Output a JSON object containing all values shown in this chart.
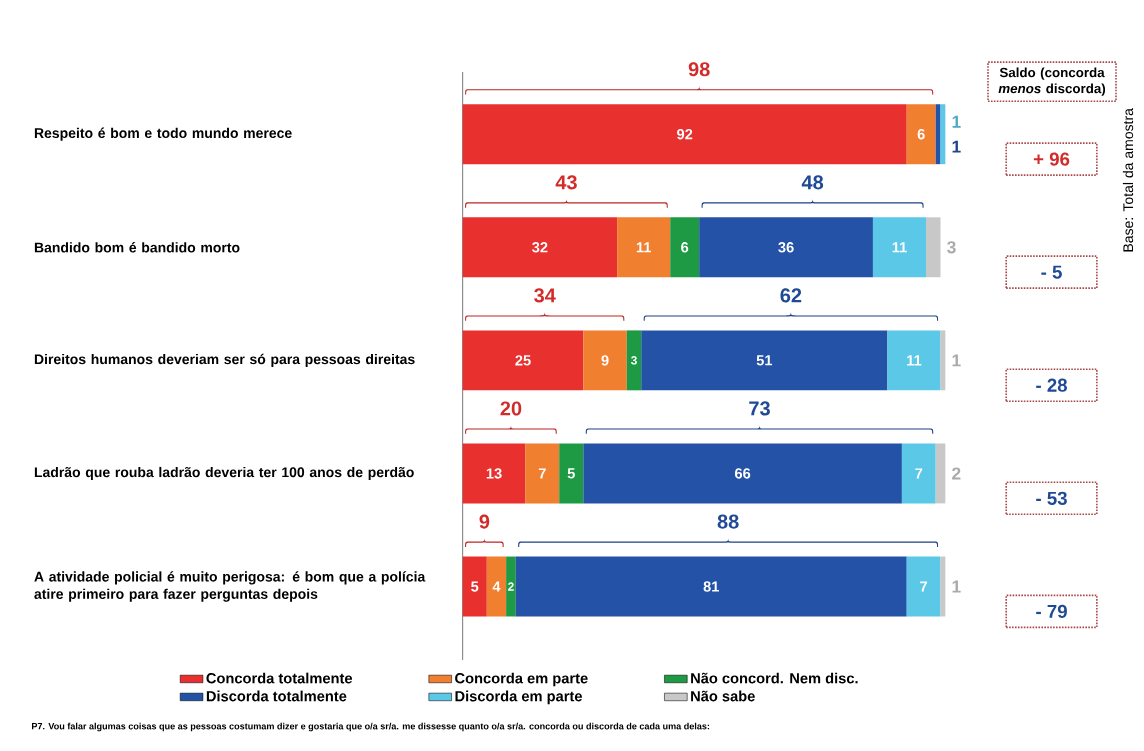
{
  "chart_data": {
    "type": "bar",
    "orientation": "horizontal",
    "stacked": true,
    "legend": "bottom",
    "tick_labels": "y",
    "xlim": [
      0,
      100
    ],
    "categories": [
      "Respeito é bom e todo mundo merece",
      "Bandido bom é bandido morto",
      "Direitos humanos deveriam ser só para pessoas direitas",
      "Ladrão que rouba ladrão deveria ter 100 anos de perdão",
      "A atividade policial é muito perigosa: é bom que a polícia atire primeiro para fazer perguntas depois"
    ],
    "series": [
      {
        "name": "Concorda totalmente",
        "color": "#e8312f",
        "values": [
          92,
          32,
          25,
          13,
          5
        ],
        "value_labels": [
          "92",
          "32",
          "25",
          "13",
          "5"
        ]
      },
      {
        "name": "Concorda em parte",
        "color": "#f07f2f",
        "values": [
          6,
          11,
          9,
          7,
          4
        ],
        "value_labels": [
          "6",
          "11",
          "9",
          "7",
          "4"
        ]
      },
      {
        "name": "Não concord. Nem disc.",
        "color": "#1e9a45",
        "values": [
          null,
          6,
          3,
          5,
          2
        ],
        "value_labels": [
          null,
          "6",
          "3",
          "5",
          "2"
        ]
      },
      {
        "name": "Discorda totalmente",
        "color": "#2352a6",
        "values": [
          1,
          36,
          51,
          66,
          81
        ],
        "value_labels": [
          "1",
          "36",
          "51",
          "66",
          "81"
        ]
      },
      {
        "name": "Discorda em parte",
        "color": "#5bc8e8",
        "values": [
          1,
          11,
          11,
          7,
          7
        ],
        "value_labels": [
          "1",
          "11",
          "11",
          "7",
          "7"
        ]
      },
      {
        "name": "Não sabe",
        "color": "#c8c8c8",
        "values": [
          null,
          3,
          1,
          2,
          1
        ],
        "value_labels": [
          null,
          "3",
          "1",
          "2",
          "1"
        ]
      }
    ],
    "annotations": [
      "Saldo (concorda *menos* discorda)",
      "Base: Total da amostra",
      "P7. Vou falar algumas coisas que as pessoas costumam dizer e gostaria que o/a sr/a. me dissesse quanto o/a sr/a. concorda ou discorda de cada uma delas:",
      "98",
      "43",
      "34",
      "20",
      "9",
      "48",
      "62",
      "73",
      "88",
      "+ 96",
      "- 5",
      "- 28",
      "- 53",
      "- 79"
    ]
  }
}
